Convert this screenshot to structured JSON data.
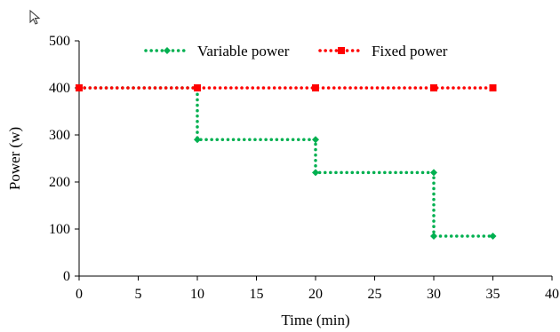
{
  "chart_data": {
    "type": "line",
    "xlabel": "Time (min)",
    "ylabel": "Power (w)",
    "xlim": [
      0,
      40
    ],
    "ylim": [
      0,
      500
    ],
    "x_ticks": [
      0,
      5,
      10,
      15,
      20,
      25,
      30,
      35,
      40
    ],
    "y_ticks": [
      0,
      100,
      200,
      300,
      400,
      500
    ],
    "grid": false,
    "legend_position": "top",
    "series": [
      {
        "name": "Variable power",
        "color": "#00b050",
        "marker": "diamond",
        "line_style": "dotted",
        "points": [
          {
            "x": 0,
            "y": 400
          },
          {
            "x": 10,
            "y": 400
          },
          {
            "x": 10,
            "y": 290
          },
          {
            "x": 20,
            "y": 290
          },
          {
            "x": 20,
            "y": 220
          },
          {
            "x": 30,
            "y": 220
          },
          {
            "x": 30,
            "y": 85
          },
          {
            "x": 35,
            "y": 85
          }
        ]
      },
      {
        "name": "Fixed power",
        "color": "#ff0000",
        "marker": "square",
        "line_style": "dotted",
        "points": [
          {
            "x": 0,
            "y": 400
          },
          {
            "x": 10,
            "y": 400
          },
          {
            "x": 20,
            "y": 400
          },
          {
            "x": 30,
            "y": 400
          },
          {
            "x": 35,
            "y": 400
          }
        ]
      }
    ]
  },
  "icons": {
    "cursor": "mouse-pointer-icon"
  }
}
